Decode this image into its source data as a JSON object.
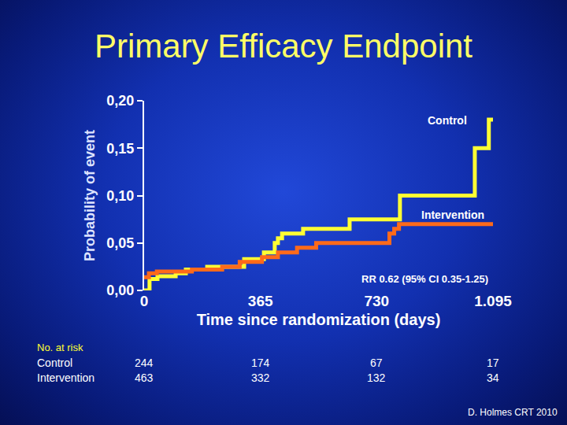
{
  "chart_data": {
    "type": "line",
    "title": "Primary Efficacy Endpoint",
    "x_label": "Time since randomization (days)",
    "y_label": "Probability of event",
    "line_style": "step",
    "series": [
      {
        "name": "Control",
        "color": "#ffff33",
        "x": [
          0,
          17,
          42,
          99,
          131,
          198,
          314,
          376,
          410,
          420,
          433,
          499,
          645,
          803,
          1038,
          1082,
          1095
        ],
        "values": [
          0,
          0.012,
          0.015,
          0.018,
          0.022,
          0.025,
          0.033,
          0.04,
          0.05,
          0.055,
          0.06,
          0.065,
          0.075,
          0.1,
          0.15,
          0.18,
          0.18
        ]
      },
      {
        "name": "Intervention",
        "color": "#ff6a1a",
        "x": [
          0,
          15,
          40,
          150,
          245,
          300,
          370,
          420,
          480,
          540,
          770,
          785,
          800,
          1095
        ],
        "values": [
          0.014,
          0.018,
          0.02,
          0.022,
          0.025,
          0.03,
          0.035,
          0.04,
          0.045,
          0.05,
          0.06,
          0.065,
          0.07,
          0.07
        ]
      }
    ],
    "xlim": [
      0,
      1095
    ],
    "xticks": [
      0,
      365,
      730,
      {
        "value": 1095,
        "label": "1.095"
      }
    ],
    "ylim": [
      0,
      0.2
    ],
    "yticks": [
      {
        "value": 0,
        "label": "0,00"
      },
      {
        "value": 0.05,
        "label": "0,05"
      },
      {
        "value": 0.1,
        "label": "0,10"
      },
      {
        "value": 0.15,
        "label": "0,15"
      },
      {
        "value": 0.2,
        "label": "0,20"
      }
    ],
    "grid": false,
    "annotations": [
      "RR 0.62 (95% CI 0.35-1.25)"
    ],
    "number_at_risk": {
      "title": "No. at risk",
      "x": [
        0,
        365,
        730,
        1095
      ],
      "rows": [
        {
          "name": "Control",
          "values": [
            244,
            174,
            67,
            17
          ]
        },
        {
          "name": "Intervention",
          "values": [
            463,
            332,
            132,
            34
          ]
        }
      ]
    },
    "source": "D. Holmes CRT 2010"
  }
}
